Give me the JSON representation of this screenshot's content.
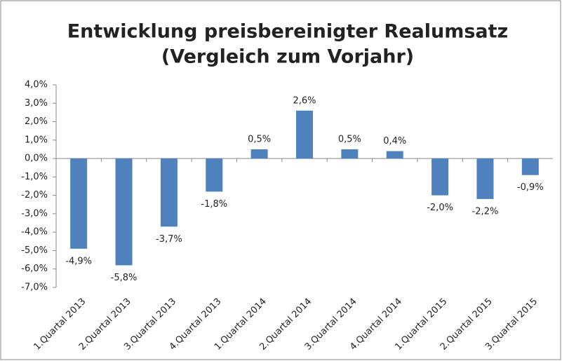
{
  "chart_data": {
    "type": "bar",
    "title": "Entwicklung preisbereinigter Realumsatz",
    "subtitle": "(Vergleich zum Vorjahr)",
    "categories": [
      "1.Quartal 2013",
      "2.Quartal 2013",
      "3.Quartal 2013",
      "4.Quartal 2013",
      "1.Quartal 2014",
      "2.Quartal 2014",
      "3.Quartal 2014",
      "4.Quartal 2014",
      "1.Quartal 2015",
      "2.Quartal 2015",
      "3.Quartal 2015"
    ],
    "values": [
      -4.9,
      -5.8,
      -3.7,
      -1.8,
      0.5,
      2.6,
      0.5,
      0.4,
      -2.0,
      -2.2,
      -0.9
    ],
    "value_labels": [
      "-4,9%",
      "-5,8%",
      "-3,7%",
      "-1,8%",
      "0,5%",
      "2,6%",
      "0,5%",
      "0,4%",
      "-2,0%",
      "-2,2%",
      "-0,9%"
    ],
    "color": "#4f81bd",
    "ylim": [
      -7,
      4
    ],
    "yticks": [
      {
        "value": 4,
        "label": "4,0%"
      },
      {
        "value": 3,
        "label": "3,0%"
      },
      {
        "value": 2,
        "label": "2,0%"
      },
      {
        "value": 1,
        "label": "1,0%"
      },
      {
        "value": 0,
        "label": "0,0%"
      },
      {
        "value": -1,
        "label": "-1,0%"
      },
      {
        "value": -2,
        "label": "-2,0%"
      },
      {
        "value": -3,
        "label": "-3,0%"
      },
      {
        "value": -4,
        "label": "-4,0%"
      },
      {
        "value": -5,
        "label": "-5,0%"
      },
      {
        "value": -6,
        "label": "-6,0%"
      },
      {
        "value": -7,
        "label": "-7,0%"
      }
    ],
    "grid": false
  }
}
